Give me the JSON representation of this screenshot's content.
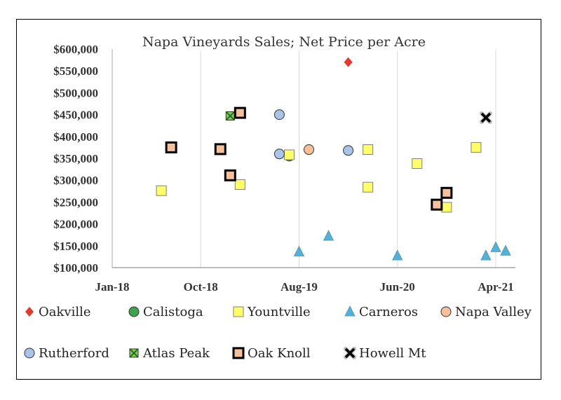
{
  "chart_data": {
    "type": "scatter",
    "title": "Napa Vineyards Sales; Net Price per Acre",
    "xlabel": "",
    "ylabel": "",
    "x_ticks": [
      "Jan-18",
      "Oct-18",
      "Aug-19",
      "Jun-20",
      "Apr-21"
    ],
    "y_ticks": [
      "$100,000",
      "$150,000",
      "$200,000",
      "$250,000",
      "$300,000",
      "$350,000",
      "$400,000",
      "$450,000",
      "$500,000",
      "$550,000",
      "$600,000"
    ],
    "ylim": [
      100000,
      600000
    ],
    "grid": "vertical",
    "legend_position": "bottom",
    "series": [
      {
        "name": "Oakville",
        "marker": "diamond",
        "color": "#e03a2a",
        "points": [
          {
            "x": "2020-01",
            "y": 570000
          }
        ]
      },
      {
        "name": "Calistoga",
        "marker": "circle",
        "color": "#3fa34d",
        "points": [
          {
            "x": "2019-07",
            "y": 355000
          }
        ]
      },
      {
        "name": "Yountville",
        "marker": "square",
        "color": "#ffff66",
        "points": [
          {
            "x": "2018-06",
            "y": 276000
          },
          {
            "x": "2019-02",
            "y": 290000
          },
          {
            "x": "2019-07",
            "y": 358000
          },
          {
            "x": "2020-03",
            "y": 370000
          },
          {
            "x": "2020-03",
            "y": 284000
          },
          {
            "x": "2020-08",
            "y": 338000
          },
          {
            "x": "2020-11",
            "y": 238000
          },
          {
            "x": "2021-02",
            "y": 375000
          }
        ]
      },
      {
        "name": "Carneros",
        "marker": "triangle",
        "color": "#4fb2d9",
        "points": [
          {
            "x": "2019-08",
            "y": 136000
          },
          {
            "x": "2019-11",
            "y": 172000
          },
          {
            "x": "2020-06",
            "y": 127000
          },
          {
            "x": "2021-03",
            "y": 127000
          },
          {
            "x": "2021-04",
            "y": 146000
          },
          {
            "x": "2021-05",
            "y": 138000
          }
        ]
      },
      {
        "name": "Napa Valley",
        "marker": "circle",
        "color": "#f5c09a",
        "points": [
          {
            "x": "2019-09",
            "y": 370000
          }
        ]
      },
      {
        "name": "Rutherford",
        "marker": "circle",
        "color": "#a8c4e6",
        "points": [
          {
            "x": "2019-06",
            "y": 450000
          },
          {
            "x": "2019-06",
            "y": 360000
          },
          {
            "x": "2020-01",
            "y": 368000
          }
        ]
      },
      {
        "name": "Atlas Peak",
        "marker": "square-x",
        "color": "#7ecb52",
        "points": [
          {
            "x": "2019-01",
            "y": 447000
          }
        ]
      },
      {
        "name": "Oak Knoll",
        "marker": "square-open",
        "color": "#f5c09a",
        "points": [
          {
            "x": "2018-07",
            "y": 375000
          },
          {
            "x": "2018-12",
            "y": 371000
          },
          {
            "x": "2019-01",
            "y": 311000
          },
          {
            "x": "2019-02",
            "y": 454000
          },
          {
            "x": "2020-10",
            "y": 244000
          },
          {
            "x": "2020-11",
            "y": 271000
          }
        ]
      },
      {
        "name": "Howell Mt",
        "marker": "x",
        "color": "#000000",
        "points": [
          {
            "x": "2021-03",
            "y": 443000
          }
        ]
      }
    ]
  }
}
